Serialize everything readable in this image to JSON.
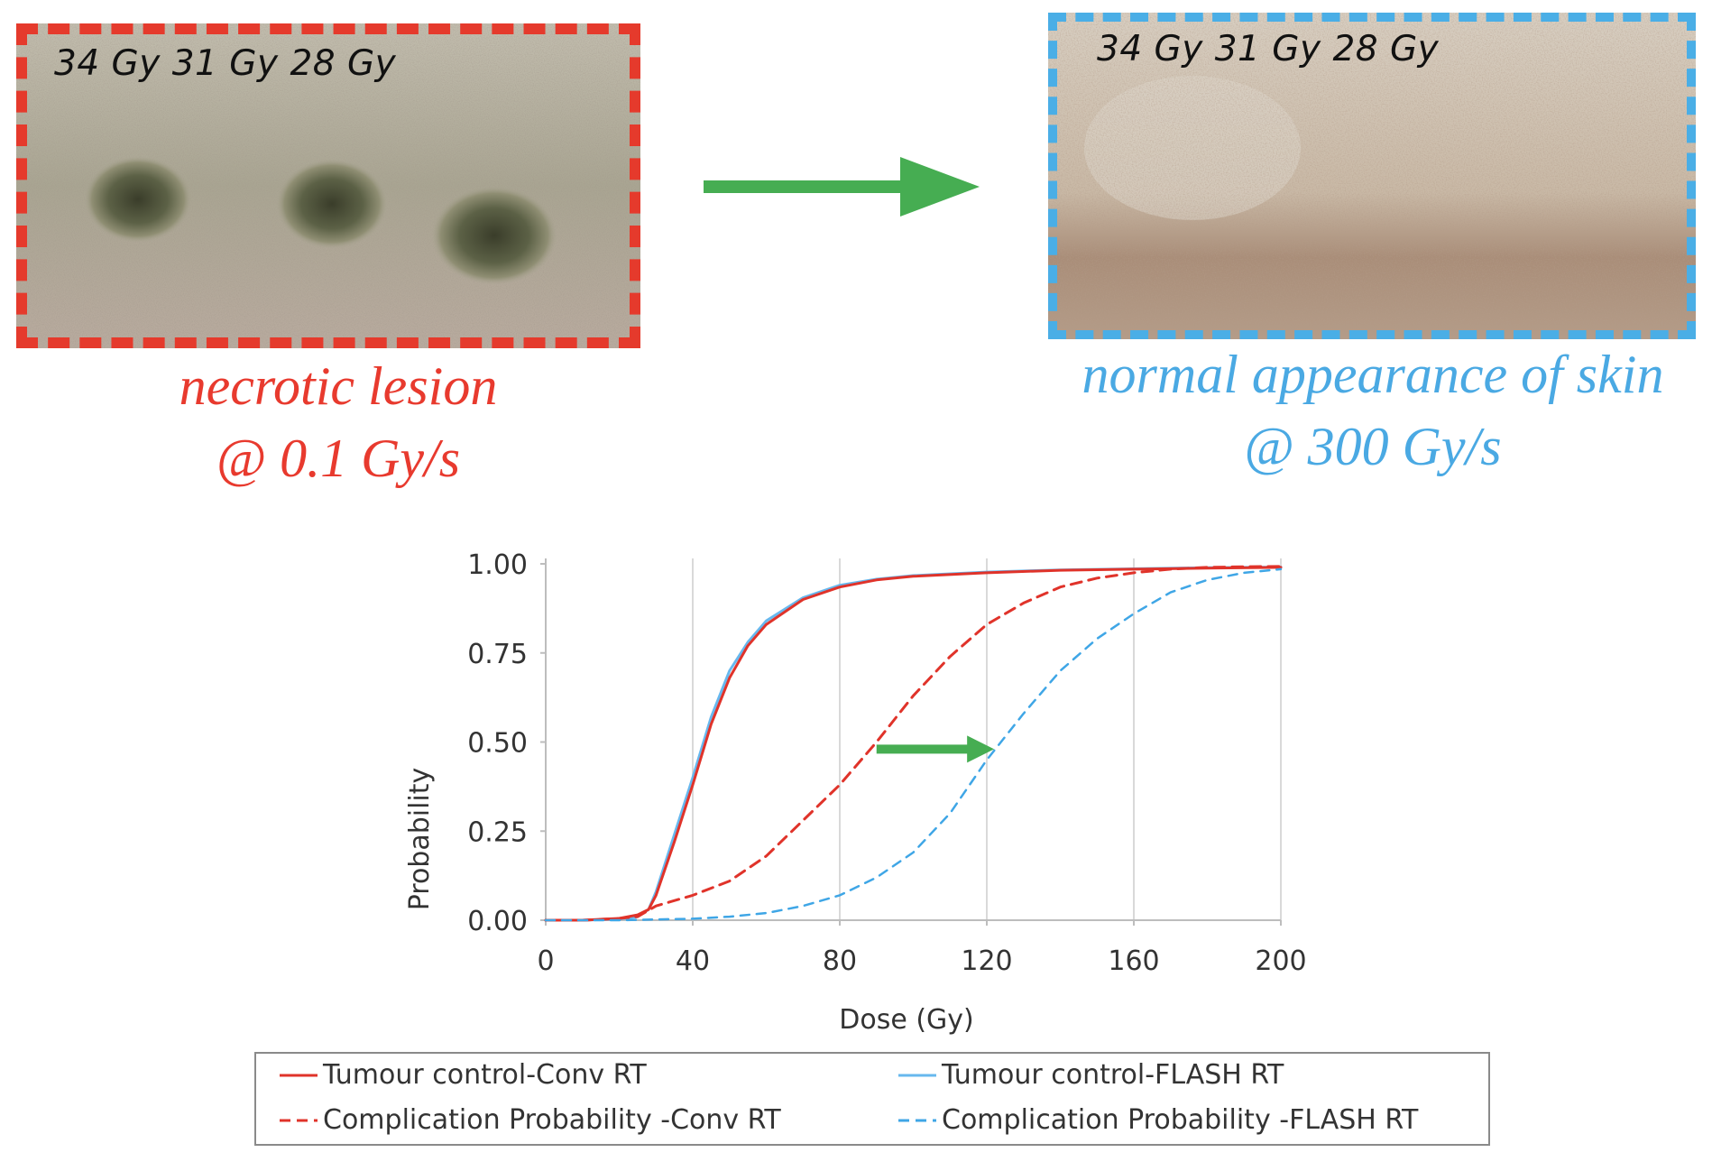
{
  "photos": {
    "conv": {
      "doses": "34 Gy 31 Gy 28 Gy",
      "caption_line1": "necrotic lesion",
      "caption_line2": "@ 0.1 Gy/s"
    },
    "flash": {
      "doses": "34 Gy 31 Gy 28 Gy",
      "caption_line1": "normal appearance of skin",
      "caption_line2": "@ 300 Gy/s"
    }
  },
  "colors": {
    "conv": "#e53a2c",
    "flash": "#4aaee6",
    "arrow": "#46ad52",
    "tumour_conv": "#e0332a",
    "tumour_flash": "#67b8ee",
    "comp_conv": "#e0332a",
    "comp_flash": "#3fa6e6"
  },
  "chart_data": {
    "type": "line",
    "title": "",
    "xlabel": "Dose (Gy)",
    "ylabel": "Probability",
    "xlim": [
      0,
      200
    ],
    "ylim": [
      0,
      1
    ],
    "x_ticks": [
      "0",
      "40",
      "80",
      "120",
      "160",
      "200"
    ],
    "y_ticks": [
      "0.00",
      "0.25",
      "0.50",
      "0.75",
      "1.00"
    ],
    "grid": "vertical",
    "legend_position": "bottom",
    "annotation": "arrow from Complication Probability -Conv RT to Complication Probability -FLASH RT at probability 0.5",
    "series": [
      {
        "name": "Tumour control-Conv RT",
        "style": "solid",
        "x": [
          0,
          10,
          20,
          25,
          28,
          30,
          35,
          40,
          45,
          50,
          55,
          60,
          70,
          80,
          90,
          100,
          120,
          140,
          160,
          180,
          200
        ],
        "y": [
          0,
          0,
          0.005,
          0.015,
          0.03,
          0.07,
          0.22,
          0.38,
          0.55,
          0.68,
          0.77,
          0.83,
          0.9,
          0.935,
          0.955,
          0.965,
          0.975,
          0.982,
          0.985,
          0.988,
          0.99
        ]
      },
      {
        "name": "Tumour control-FLASH RT",
        "style": "solid",
        "x": [
          0,
          10,
          20,
          25,
          28,
          30,
          35,
          40,
          45,
          50,
          55,
          60,
          70,
          80,
          90,
          100,
          120,
          140,
          160,
          180,
          200
        ],
        "y": [
          0,
          0,
          0.003,
          0.01,
          0.03,
          0.08,
          0.24,
          0.4,
          0.57,
          0.7,
          0.78,
          0.84,
          0.905,
          0.94,
          0.957,
          0.967,
          0.977,
          0.983,
          0.986,
          0.989,
          0.991
        ]
      },
      {
        "name": "Complication Probability -Conv RT",
        "style": "dashed",
        "x": [
          0,
          10,
          20,
          25,
          30,
          40,
          50,
          60,
          70,
          80,
          90,
          100,
          110,
          120,
          130,
          140,
          150,
          160,
          170,
          180,
          190,
          200
        ],
        "y": [
          0,
          0,
          0.005,
          0.01,
          0.04,
          0.07,
          0.11,
          0.18,
          0.28,
          0.38,
          0.5,
          0.63,
          0.74,
          0.83,
          0.89,
          0.935,
          0.96,
          0.975,
          0.985,
          0.99,
          0.992,
          0.993
        ]
      },
      {
        "name": "Complication Probability -FLASH RT",
        "style": "dashed",
        "x": [
          0,
          20,
          30,
          40,
          50,
          60,
          70,
          80,
          90,
          100,
          110,
          120,
          130,
          140,
          150,
          160,
          170,
          180,
          190,
          200
        ],
        "y": [
          0,
          0,
          0.002,
          0.004,
          0.01,
          0.02,
          0.04,
          0.07,
          0.12,
          0.19,
          0.3,
          0.45,
          0.58,
          0.7,
          0.79,
          0.86,
          0.92,
          0.955,
          0.975,
          0.985
        ]
      }
    ],
    "arrow": {
      "x_from": 90,
      "x_to": 122,
      "y": 0.48
    }
  }
}
